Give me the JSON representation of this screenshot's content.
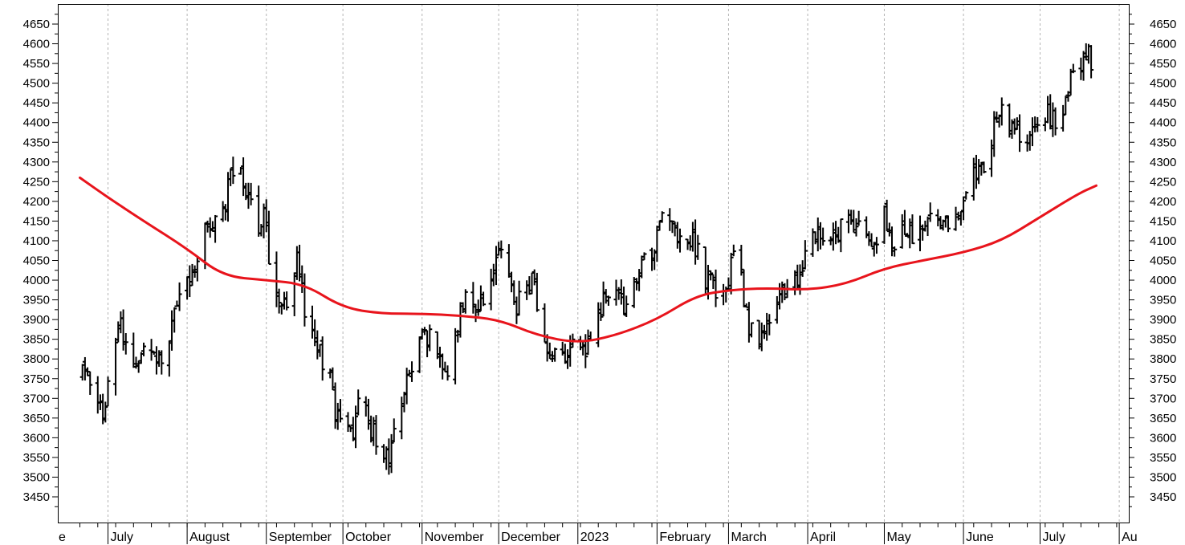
{
  "chart_data": {
    "type": "ohlc",
    "title": "",
    "xlabel": "",
    "ylabel": "",
    "ylim": [
      3400,
      4700
    ],
    "y_ticks": [
      3450,
      3500,
      3550,
      3600,
      3650,
      3700,
      3750,
      3800,
      3850,
      3900,
      3950,
      4000,
      4050,
      4100,
      4150,
      4200,
      4250,
      4300,
      4350,
      4400,
      4450,
      4500,
      4550,
      4600,
      4650
    ],
    "y_tick_labels": [
      "3450",
      "3500",
      "3550",
      "3600",
      "3650",
      "3700",
      "3750",
      "3800",
      "3850",
      "3900",
      "3950",
      "4000",
      "4050",
      "4100",
      "4150",
      "4200",
      "4250",
      "4300",
      "4350",
      "4400",
      "4450",
      "4500",
      "4550",
      "4600",
      "4650"
    ],
    "grid": true,
    "colors": {
      "price_bars": "#000000",
      "moving_average": "#e8141c",
      "grid": "#b4b4b4"
    },
    "x_months": [
      "e",
      "July",
      "August",
      "September",
      "October",
      "November",
      "December",
      "2023",
      "February",
      "March",
      "April",
      "May",
      "June",
      "July",
      "Au"
    ],
    "price_path": [
      [
        "2022-06-21",
        3760
      ],
      [
        "2022-06-25",
        3720
      ],
      [
        "2022-06-29",
        3650
      ],
      [
        "2022-07-03",
        3820
      ],
      [
        "2022-07-06",
        3900
      ],
      [
        "2022-07-09",
        3800
      ],
      [
        "2022-07-12",
        3790
      ],
      [
        "2022-07-16",
        3860
      ],
      [
        "2022-07-19",
        3840
      ],
      [
        "2022-07-22",
        3760
      ],
      [
        "2022-07-25",
        3850
      ],
      [
        "2022-07-28",
        3950
      ],
      [
        "2022-08-01",
        3980
      ],
      [
        "2022-08-04",
        4050
      ],
      [
        "2022-08-07",
        4120
      ],
      [
        "2022-08-10",
        4140
      ],
      [
        "2022-08-14",
        4160
      ],
      [
        "2022-08-17",
        4230
      ],
      [
        "2022-08-20",
        4300
      ],
      [
        "2022-08-24",
        4240
      ],
      [
        "2022-08-28",
        4120
      ],
      [
        "2022-08-31",
        4170
      ],
      [
        "2022-09-03",
        4020
      ],
      [
        "2022-09-07",
        3950
      ],
      [
        "2022-09-10",
        3920
      ],
      [
        "2022-09-13",
        4060
      ],
      [
        "2022-09-16",
        3920
      ],
      [
        "2022-09-19",
        3890
      ],
      [
        "2022-09-22",
        3820
      ],
      [
        "2022-09-26",
        3750
      ],
      [
        "2022-09-28",
        3660
      ],
      [
        "2022-10-02",
        3640
      ],
      [
        "2022-10-05",
        3620
      ],
      [
        "2022-10-08",
        3770
      ],
      [
        "2022-10-11",
        3640
      ],
      [
        "2022-10-14",
        3590
      ],
      [
        "2022-10-17",
        3560
      ],
      [
        "2022-10-19",
        3530
      ],
      [
        "2022-10-22",
        3660
      ],
      [
        "2022-10-25",
        3720
      ],
      [
        "2022-10-28",
        3760
      ],
      [
        "2022-11-01",
        3850
      ],
      [
        "2022-11-04",
        3860
      ],
      [
        "2022-11-07",
        3820
      ],
      [
        "2022-11-10",
        3760
      ],
      [
        "2022-11-13",
        3800
      ],
      [
        "2022-11-16",
        3930
      ],
      [
        "2022-11-19",
        3980
      ],
      [
        "2022-11-22",
        3930
      ],
      [
        "2022-11-25",
        3960
      ],
      [
        "2022-11-29",
        4010
      ],
      [
        "2022-12-02",
        4070
      ],
      [
        "2022-12-05",
        3990
      ],
      [
        "2022-12-08",
        3940
      ],
      [
        "2022-12-11",
        3950
      ],
      [
        "2022-12-14",
        4000
      ],
      [
        "2022-12-17",
        3900
      ],
      [
        "2022-12-20",
        3830
      ],
      [
        "2022-12-23",
        3830
      ],
      [
        "2022-12-27",
        3810
      ],
      [
        "2022-12-31",
        3840
      ],
      [
        "2023-01-04",
        3830
      ],
      [
        "2023-01-07",
        3880
      ],
      [
        "2023-01-10",
        3930
      ],
      [
        "2023-01-13",
        3980
      ],
      [
        "2023-01-17",
        3950
      ],
      [
        "2023-01-20",
        3920
      ],
      [
        "2023-01-23",
        4000
      ],
      [
        "2023-01-27",
        4040
      ],
      [
        "2023-01-31",
        4080
      ],
      [
        "2023-02-02",
        4170
      ],
      [
        "2023-02-06",
        4140
      ],
      [
        "2023-02-09",
        4100
      ],
      [
        "2023-02-12",
        4130
      ],
      [
        "2023-02-16",
        4090
      ],
      [
        "2023-02-20",
        4000
      ],
      [
        "2023-02-23",
        3990
      ],
      [
        "2023-02-27",
        3970
      ],
      [
        "2023-03-03",
        4050
      ],
      [
        "2023-03-06",
        4000
      ],
      [
        "2023-03-09",
        3880
      ],
      [
        "2023-03-12",
        3840
      ],
      [
        "2023-03-15",
        3890
      ],
      [
        "2023-03-18",
        3930
      ],
      [
        "2023-03-21",
        3960
      ],
      [
        "2023-03-24",
        3980
      ],
      [
        "2023-03-28",
        3990
      ],
      [
        "2023-04-01",
        4090
      ],
      [
        "2023-04-04",
        4110
      ],
      [
        "2023-04-08",
        4100
      ],
      [
        "2023-04-12",
        4120
      ],
      [
        "2023-04-16",
        4140
      ],
      [
        "2023-04-20",
        4130
      ],
      [
        "2023-04-24",
        4100
      ],
      [
        "2023-04-27",
        4070
      ],
      [
        "2023-05-01",
        4160
      ],
      [
        "2023-05-04",
        4080
      ],
      [
        "2023-05-07",
        4110
      ],
      [
        "2023-05-10",
        4120
      ],
      [
        "2023-05-14",
        4110
      ],
      [
        "2023-05-17",
        4130
      ],
      [
        "2023-05-20",
        4180
      ],
      [
        "2023-05-24",
        4140
      ],
      [
        "2023-05-27",
        4160
      ],
      [
        "2023-05-31",
        4190
      ],
      [
        "2023-06-03",
        4260
      ],
      [
        "2023-06-06",
        4280
      ],
      [
        "2023-06-10",
        4310
      ],
      [
        "2023-06-13",
        4380
      ],
      [
        "2023-06-16",
        4420
      ],
      [
        "2023-06-19",
        4390
      ],
      [
        "2023-06-22",
        4370
      ],
      [
        "2023-06-25",
        4340
      ],
      [
        "2023-06-28",
        4380
      ],
      [
        "2023-07-01",
        4440
      ],
      [
        "2023-07-04",
        4420
      ],
      [
        "2023-07-07",
        4400
      ],
      [
        "2023-07-10",
        4440
      ],
      [
        "2023-07-13",
        4500
      ],
      [
        "2023-07-17",
        4530
      ],
      [
        "2023-07-19",
        4580
      ],
      [
        "2023-07-21",
        4550
      ],
      [
        "2023-07-23",
        4540
      ]
    ],
    "moving_average": [
      [
        "2022-06-20",
        4260
      ],
      [
        "2022-07-01",
        4210
      ],
      [
        "2022-07-15",
        4150
      ],
      [
        "2022-08-01",
        4080
      ],
      [
        "2022-08-15",
        4010
      ],
      [
        "2022-09-01",
        4000
      ],
      [
        "2022-09-16",
        3990
      ],
      [
        "2022-10-01",
        3930
      ],
      [
        "2022-10-16",
        3915
      ],
      [
        "2022-11-01",
        3915
      ],
      [
        "2022-11-16",
        3910
      ],
      [
        "2022-12-01",
        3900
      ],
      [
        "2022-12-16",
        3860
      ],
      [
        "2023-01-01",
        3840
      ],
      [
        "2023-01-16",
        3860
      ],
      [
        "2023-02-01",
        3900
      ],
      [
        "2023-02-16",
        3960
      ],
      [
        "2023-03-01",
        3975
      ],
      [
        "2023-03-16",
        3980
      ],
      [
        "2023-04-01",
        3975
      ],
      [
        "2023-04-16",
        3990
      ],
      [
        "2023-05-01",
        4030
      ],
      [
        "2023-05-16",
        4050
      ],
      [
        "2023-06-01",
        4070
      ],
      [
        "2023-06-16",
        4100
      ],
      [
        "2023-07-01",
        4160
      ],
      [
        "2023-07-16",
        4220
      ],
      [
        "2023-07-23",
        4240
      ]
    ]
  }
}
